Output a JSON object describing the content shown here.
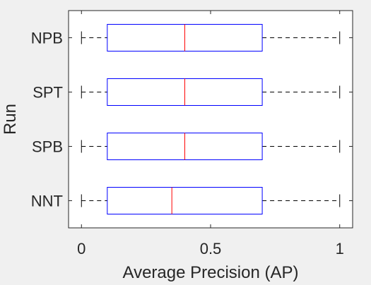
{
  "chart_data": {
    "type": "box",
    "orientation": "horizontal",
    "xlabel": "Average Precision (AP)",
    "ylabel": "Run",
    "xlim": [
      -0.05,
      1.05
    ],
    "xticks": [
      0,
      0.5,
      1
    ],
    "xtick_labels": [
      "0",
      "0.5",
      "1"
    ],
    "categories": [
      "NPB",
      "SPT",
      "SPB",
      "NNT"
    ],
    "boxes": [
      {
        "label": "NPB",
        "min": 0.0,
        "q1": 0.1,
        "median": 0.4,
        "q3": 0.7,
        "max": 1.0
      },
      {
        "label": "SPT",
        "min": 0.0,
        "q1": 0.1,
        "median": 0.4,
        "q3": 0.7,
        "max": 1.0
      },
      {
        "label": "SPB",
        "min": 0.0,
        "q1": 0.1,
        "median": 0.4,
        "q3": 0.7,
        "max": 1.0
      },
      {
        "label": "NNT",
        "min": 0.0,
        "q1": 0.1,
        "median": 0.35,
        "q3": 0.7,
        "max": 1.0
      }
    ],
    "grid": false,
    "colors": {
      "box": "#0000ff",
      "median": "#ff0000",
      "whisker": "#000000",
      "background": "#f0f0f0",
      "plot_area": "#ffffff"
    }
  }
}
